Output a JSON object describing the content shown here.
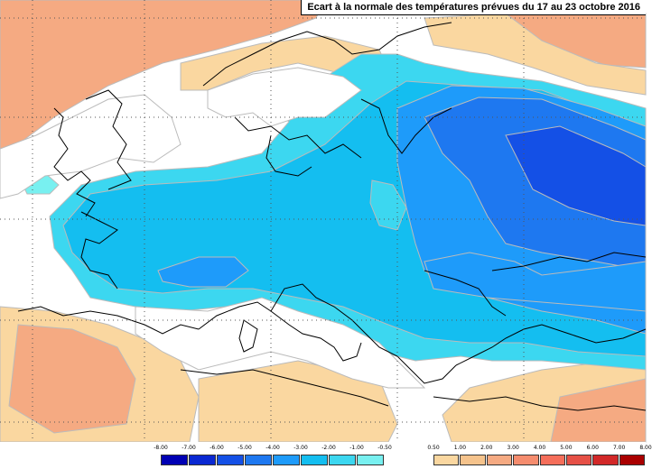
{
  "title": "Ecart à la normale des températures prévues du 17 au 23 octobre 2016",
  "legend": {
    "cold": {
      "labels": [
        "-8.00",
        "-7.00",
        "-6.00",
        "-5.00",
        "-4.00",
        "-3.00",
        "-2.00",
        "-1.00",
        "-0.50"
      ],
      "colors": [
        "#0000b4",
        "#0a28d2",
        "#1450e6",
        "#1e78f0",
        "#1e9bfa",
        "#14bef0",
        "#3cd7f0",
        "#78f0f0"
      ]
    },
    "warm": {
      "labels": [
        "0.50",
        "1.00",
        "2.00",
        "3.00",
        "4.00",
        "5.00",
        "6.00",
        "7.00",
        "8.00"
      ],
      "colors": [
        "#fad7a0",
        "#f5c38c",
        "#f5aa82",
        "#f58c6e",
        "#f56e5a",
        "#e65046",
        "#d22828",
        "#aa0000"
      ]
    }
  },
  "colors": {
    "background": "#ffffff",
    "warm_light": "#fad7a0",
    "warm_mid": "#f5aa82",
    "cold_light": "#78f0f0",
    "cold_mid": "#3cd7f0",
    "cold_main": "#14bef0",
    "cold_deep": "#1e9bfa",
    "cold_deeper": "#1e78f0",
    "cold_deepest": "#1450e6",
    "coast_line": "#000000",
    "grid_line": "#555555"
  }
}
